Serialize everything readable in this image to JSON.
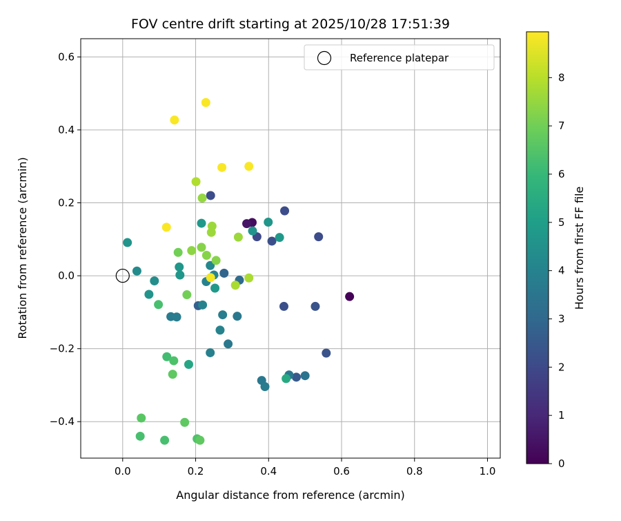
{
  "chart_data": {
    "type": "scatter",
    "title": "FOV centre drift starting at 2025/10/28 17:51:39",
    "xlabel": "Angular distance from reference (arcmin)",
    "ylabel": "Rotation from reference (arcmin)",
    "xlim": [
      -0.115,
      1.035
    ],
    "ylim": [
      -0.5,
      0.65
    ],
    "grid": true,
    "x_ticks": [
      0.0,
      0.2,
      0.4,
      0.6,
      0.8,
      1.0
    ],
    "x_tick_labels": [
      "0.0",
      "0.2",
      "0.4",
      "0.6",
      "0.8",
      "1.0"
    ],
    "y_ticks": [
      -0.4,
      -0.2,
      0.0,
      0.2,
      0.4,
      0.6
    ],
    "y_tick_labels": [
      "−0.4",
      "−0.2",
      "0.0",
      "0.2",
      "0.4",
      "0.6"
    ],
    "legend": {
      "location": "top-right",
      "entries": [
        "Reference platepar"
      ]
    },
    "reference_point": {
      "x": 0.0,
      "y": 0.0,
      "label": "Reference platepar"
    },
    "colorbar": {
      "label": "Hours from first FF file",
      "range": [
        0,
        8.95
      ],
      "ticks": [
        0,
        1,
        2,
        3,
        4,
        5,
        6,
        7,
        8
      ],
      "tick_labels": [
        "0",
        "1",
        "2",
        "3",
        "4",
        "5",
        "6",
        "7",
        "8"
      ],
      "colormap": [
        "#440154",
        "#482878",
        "#3e4989",
        "#31688e",
        "#26828e",
        "#1f9e89",
        "#35b779",
        "#6ece58",
        "#b5de2b",
        "#fde725"
      ]
    },
    "points": [
      {
        "x": 0.622,
        "y": -0.057,
        "h": 0.05
      },
      {
        "x": 0.355,
        "y": 0.146,
        "h": 0.3
      },
      {
        "x": 0.34,
        "y": 0.143,
        "h": 0.5
      },
      {
        "x": 0.368,
        "y": 0.107,
        "h": 2.0
      },
      {
        "x": 0.444,
        "y": 0.178,
        "h": 2.1
      },
      {
        "x": 0.537,
        "y": 0.107,
        "h": 2.1
      },
      {
        "x": 0.409,
        "y": 0.095,
        "h": 2.2
      },
      {
        "x": 0.241,
        "y": 0.22,
        "h": 2.1
      },
      {
        "x": 0.442,
        "y": -0.084,
        "h": 2.2
      },
      {
        "x": 0.528,
        "y": -0.084,
        "h": 2.3
      },
      {
        "x": 0.558,
        "y": -0.212,
        "h": 2.3
      },
      {
        "x": 0.476,
        "y": -0.278,
        "h": 2.5
      },
      {
        "x": 0.207,
        "y": -0.082,
        "h": 2.7
      },
      {
        "x": 0.278,
        "y": 0.007,
        "h": 2.9
      },
      {
        "x": 0.32,
        "y": -0.012,
        "h": 3.1
      },
      {
        "x": 0.5,
        "y": -0.274,
        "h": 3.4
      },
      {
        "x": 0.456,
        "y": -0.272,
        "h": 3.5
      },
      {
        "x": 0.381,
        "y": -0.287,
        "h": 3.6
      },
      {
        "x": 0.39,
        "y": -0.304,
        "h": 3.7
      },
      {
        "x": 0.289,
        "y": -0.187,
        "h": 3.6
      },
      {
        "x": 0.314,
        "y": -0.111,
        "h": 3.6
      },
      {
        "x": 0.274,
        "y": -0.107,
        "h": 3.8
      },
      {
        "x": 0.132,
        "y": -0.112,
        "h": 3.7
      },
      {
        "x": 0.148,
        "y": -0.113,
        "h": 3.8
      },
      {
        "x": 0.24,
        "y": -0.211,
        "h": 3.9
      },
      {
        "x": 0.267,
        "y": -0.149,
        "h": 4.0
      },
      {
        "x": 0.219,
        "y": -0.08,
        "h": 4.0
      },
      {
        "x": 0.229,
        "y": -0.016,
        "h": 4.0
      },
      {
        "x": 0.24,
        "y": 0.028,
        "h": 4.2
      },
      {
        "x": 0.25,
        "y": 0.002,
        "h": 4.1
      },
      {
        "x": 0.039,
        "y": 0.013,
        "h": 4.3
      },
      {
        "x": 0.087,
        "y": -0.014,
        "h": 4.4
      },
      {
        "x": 0.072,
        "y": -0.051,
        "h": 4.6
      },
      {
        "x": 0.013,
        "y": 0.091,
        "h": 4.6
      },
      {
        "x": 0.399,
        "y": 0.147,
        "h": 4.7
      },
      {
        "x": 0.43,
        "y": 0.105,
        "h": 4.8
      },
      {
        "x": 0.356,
        "y": 0.123,
        "h": 4.6
      },
      {
        "x": 0.216,
        "y": 0.144,
        "h": 4.8
      },
      {
        "x": 0.253,
        "y": -0.034,
        "h": 4.8
      },
      {
        "x": 0.155,
        "y": 0.024,
        "h": 4.7
      },
      {
        "x": 0.157,
        "y": 0.002,
        "h": 4.7
      },
      {
        "x": 0.181,
        "y": -0.243,
        "h": 5.3
      },
      {
        "x": 0.448,
        "y": -0.282,
        "h": 5.4
      },
      {
        "x": 0.098,
        "y": -0.079,
        "h": 6.3
      },
      {
        "x": 0.121,
        "y": -0.222,
        "h": 6.2
      },
      {
        "x": 0.14,
        "y": -0.233,
        "h": 6.4
      },
      {
        "x": 0.137,
        "y": -0.27,
        "h": 6.7
      },
      {
        "x": 0.051,
        "y": -0.39,
        "h": 6.6
      },
      {
        "x": 0.048,
        "y": -0.44,
        "h": 6.3
      },
      {
        "x": 0.115,
        "y": -0.451,
        "h": 6.3
      },
      {
        "x": 0.17,
        "y": -0.402,
        "h": 6.7
      },
      {
        "x": 0.204,
        "y": -0.447,
        "h": 6.4
      },
      {
        "x": 0.212,
        "y": -0.451,
        "h": 6.7
      },
      {
        "x": 0.176,
        "y": -0.052,
        "h": 7.0
      },
      {
        "x": 0.152,
        "y": 0.064,
        "h": 7.0
      },
      {
        "x": 0.256,
        "y": 0.042,
        "h": 7.3
      },
      {
        "x": 0.23,
        "y": 0.056,
        "h": 7.3
      },
      {
        "x": 0.216,
        "y": 0.078,
        "h": 7.3
      },
      {
        "x": 0.189,
        "y": 0.069,
        "h": 7.4
      },
      {
        "x": 0.218,
        "y": 0.213,
        "h": 7.5
      },
      {
        "x": 0.243,
        "y": 0.119,
        "h": 7.6
      },
      {
        "x": 0.245,
        "y": 0.136,
        "h": 7.6
      },
      {
        "x": 0.317,
        "y": 0.106,
        "h": 7.6
      },
      {
        "x": 0.309,
        "y": -0.026,
        "h": 7.8
      },
      {
        "x": 0.346,
        "y": -0.006,
        "h": 7.8
      },
      {
        "x": 0.201,
        "y": 0.258,
        "h": 7.9
      },
      {
        "x": 0.241,
        "y": -0.005,
        "h": 8.8
      },
      {
        "x": 0.12,
        "y": 0.133,
        "h": 8.9
      },
      {
        "x": 0.142,
        "y": 0.427,
        "h": 8.9
      },
      {
        "x": 0.228,
        "y": 0.475,
        "h": 8.9
      },
      {
        "x": 0.272,
        "y": 0.297,
        "h": 8.9
      },
      {
        "x": 0.346,
        "y": 0.3,
        "h": 8.9
      }
    ]
  }
}
